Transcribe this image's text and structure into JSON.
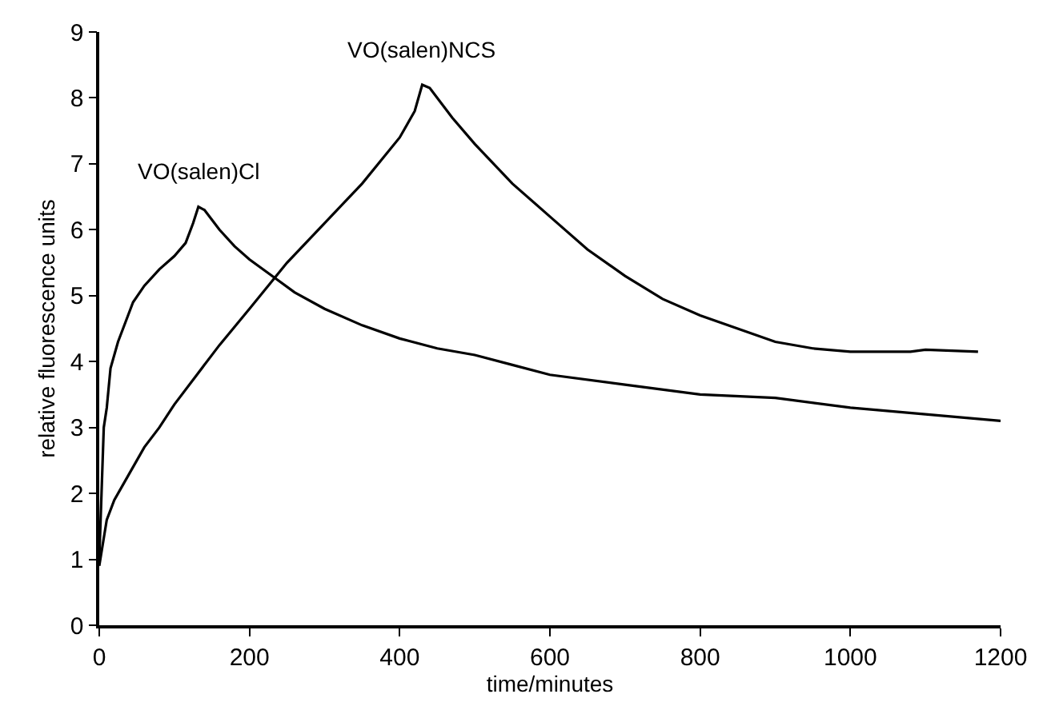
{
  "chart_data": {
    "type": "line",
    "xlabel": "time/minutes",
    "ylabel": "relative fluorescence units",
    "xlim": [
      0,
      1200
    ],
    "xticks": [
      0,
      200,
      400,
      600,
      800,
      1000,
      1200
    ],
    "ylim": [
      0,
      9
    ],
    "yticks": [
      0,
      1,
      2,
      3,
      4,
      5,
      6,
      7,
      8,
      9
    ],
    "legend": false,
    "marker": "none",
    "line_style": "solid",
    "series": [
      {
        "name": "VO(salen)Cl",
        "color": "#000000",
        "x": [
          0,
          3,
          6,
          10,
          15,
          25,
          35,
          45,
          60,
          80,
          100,
          115,
          125,
          132,
          140,
          160,
          180,
          200,
          230,
          260,
          300,
          350,
          400,
          450,
          500,
          550,
          600,
          700,
          800,
          900,
          1000,
          1100,
          1200
        ],
        "values": [
          1.0,
          2.0,
          3.0,
          3.3,
          3.9,
          4.3,
          4.6,
          4.9,
          5.15,
          5.4,
          5.6,
          5.8,
          6.1,
          6.35,
          6.3,
          6.0,
          5.75,
          5.55,
          5.3,
          5.05,
          4.8,
          4.55,
          4.35,
          4.2,
          4.1,
          3.95,
          3.8,
          3.65,
          3.5,
          3.45,
          3.3,
          3.2,
          3.1
        ]
      },
      {
        "name": "VO(salen)NCS",
        "color": "#000000",
        "x": [
          0,
          10,
          20,
          40,
          60,
          80,
          100,
          130,
          160,
          200,
          250,
          300,
          350,
          400,
          420,
          430,
          440,
          470,
          500,
          550,
          600,
          650,
          700,
          750,
          800,
          850,
          900,
          950,
          1000,
          1080,
          1100,
          1170
        ],
        "values": [
          0.9,
          1.6,
          1.9,
          2.3,
          2.7,
          3.0,
          3.35,
          3.8,
          4.25,
          4.8,
          5.5,
          6.1,
          6.7,
          7.4,
          7.8,
          8.2,
          8.15,
          7.7,
          7.3,
          6.7,
          6.2,
          5.7,
          5.3,
          4.95,
          4.7,
          4.5,
          4.3,
          4.2,
          4.15,
          4.15,
          4.18,
          4.15
        ]
      }
    ]
  }
}
